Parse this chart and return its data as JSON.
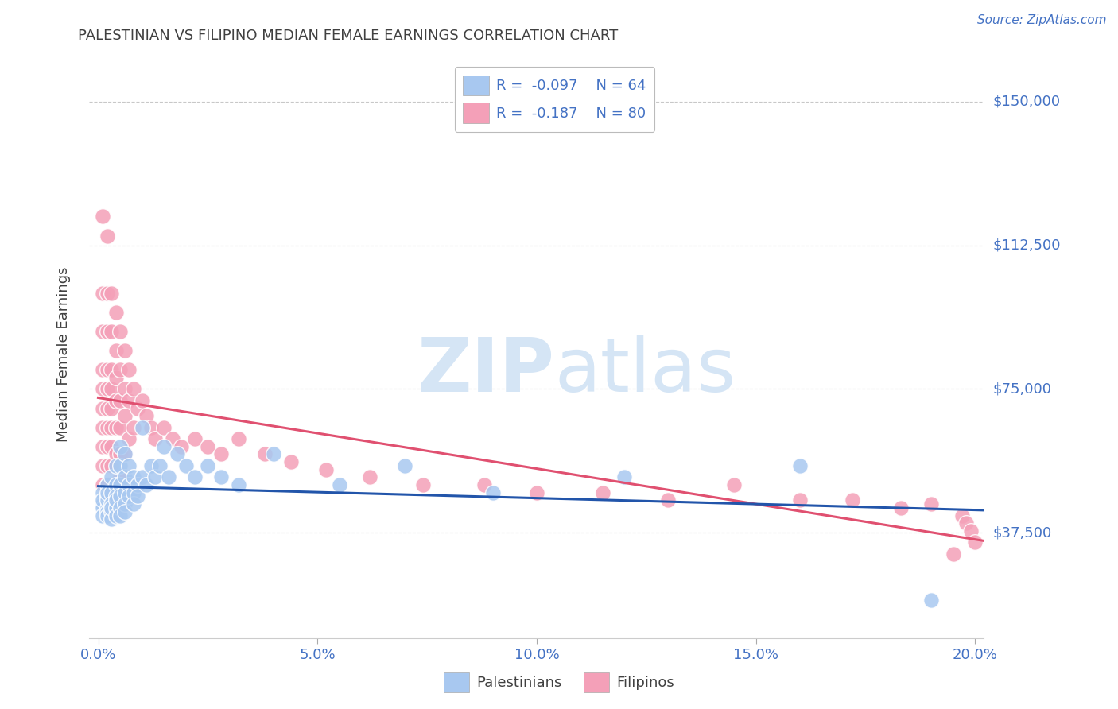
{
  "title": "PALESTINIAN VS FILIPINO MEDIAN FEMALE EARNINGS CORRELATION CHART",
  "source": "Source: ZipAtlas.com",
  "ylabel": "Median Female Earnings",
  "xlabel": "",
  "watermark_zip": "ZIP",
  "watermark_atlas": "atlas",
  "xlim": [
    -0.002,
    0.202
  ],
  "ylim": [
    10000,
    158000
  ],
  "yticks": [
    37500,
    75000,
    112500,
    150000
  ],
  "ytick_labels": [
    "$37,500",
    "$75,000",
    "$112,500",
    "$150,000"
  ],
  "xticks": [
    0.0,
    0.05,
    0.1,
    0.15,
    0.2
  ],
  "xtick_labels": [
    "0.0%",
    "5.0%",
    "10.0%",
    "15.0%",
    "20.0%"
  ],
  "legend_r1": "-0.097",
  "legend_n1": "64",
  "legend_r2": "-0.187",
  "legend_n2": "80",
  "legend_label1": "Palestinians",
  "legend_label2": "Filipinos",
  "color_blue": "#A8C8F0",
  "color_pink": "#F4A0B8",
  "color_line_blue": "#2255AA",
  "color_line_pink": "#E05070",
  "color_title": "#404040",
  "color_axis_label": "#404040",
  "color_tick_blue": "#4472C4",
  "color_grid": "#C8C8C8",
  "color_source": "#4472C4",
  "color_watermark": "#D5E5F5",
  "palestinians_x": [
    0.001,
    0.001,
    0.001,
    0.001,
    0.001,
    0.002,
    0.002,
    0.002,
    0.002,
    0.002,
    0.002,
    0.002,
    0.003,
    0.003,
    0.003,
    0.003,
    0.003,
    0.003,
    0.004,
    0.004,
    0.004,
    0.004,
    0.004,
    0.004,
    0.005,
    0.005,
    0.005,
    0.005,
    0.005,
    0.005,
    0.006,
    0.006,
    0.006,
    0.006,
    0.006,
    0.007,
    0.007,
    0.007,
    0.008,
    0.008,
    0.008,
    0.009,
    0.009,
    0.01,
    0.01,
    0.011,
    0.012,
    0.013,
    0.014,
    0.015,
    0.016,
    0.018,
    0.02,
    0.022,
    0.025,
    0.028,
    0.032,
    0.04,
    0.055,
    0.07,
    0.09,
    0.12,
    0.16,
    0.19
  ],
  "palestinians_y": [
    48000,
    45000,
    44000,
    42000,
    46000,
    50000,
    47000,
    44000,
    43000,
    46000,
    48000,
    42000,
    52000,
    48000,
    45000,
    43000,
    41000,
    44000,
    55000,
    50000,
    47000,
    44000,
    42000,
    46000,
    60000,
    55000,
    50000,
    47000,
    44000,
    42000,
    58000,
    52000,
    48000,
    45000,
    43000,
    55000,
    50000,
    47000,
    52000,
    48000,
    45000,
    50000,
    47000,
    65000,
    52000,
    50000,
    55000,
    52000,
    55000,
    60000,
    52000,
    58000,
    55000,
    52000,
    55000,
    52000,
    50000,
    58000,
    50000,
    55000,
    48000,
    52000,
    55000,
    20000
  ],
  "filipinos_x": [
    0.001,
    0.001,
    0.001,
    0.001,
    0.001,
    0.001,
    0.001,
    0.001,
    0.001,
    0.001,
    0.002,
    0.002,
    0.002,
    0.002,
    0.002,
    0.002,
    0.002,
    0.002,
    0.002,
    0.002,
    0.003,
    0.003,
    0.003,
    0.003,
    0.003,
    0.003,
    0.003,
    0.003,
    0.004,
    0.004,
    0.004,
    0.004,
    0.004,
    0.004,
    0.005,
    0.005,
    0.005,
    0.005,
    0.005,
    0.005,
    0.006,
    0.006,
    0.006,
    0.006,
    0.007,
    0.007,
    0.007,
    0.008,
    0.008,
    0.009,
    0.01,
    0.011,
    0.012,
    0.013,
    0.015,
    0.017,
    0.019,
    0.022,
    0.025,
    0.028,
    0.032,
    0.038,
    0.044,
    0.052,
    0.062,
    0.074,
    0.088,
    0.1,
    0.115,
    0.13,
    0.145,
    0.16,
    0.172,
    0.183,
    0.19,
    0.195,
    0.197,
    0.198,
    0.199,
    0.2
  ],
  "filipinos_y": [
    120000,
    100000,
    90000,
    80000,
    75000,
    70000,
    65000,
    60000,
    55000,
    50000,
    115000,
    100000,
    90000,
    80000,
    75000,
    70000,
    65000,
    60000,
    55000,
    50000,
    100000,
    90000,
    80000,
    75000,
    70000,
    65000,
    60000,
    55000,
    95000,
    85000,
    78000,
    72000,
    65000,
    58000,
    90000,
    80000,
    72000,
    65000,
    58000,
    52000,
    85000,
    75000,
    68000,
    58000,
    80000,
    72000,
    62000,
    75000,
    65000,
    70000,
    72000,
    68000,
    65000,
    62000,
    65000,
    62000,
    60000,
    62000,
    60000,
    58000,
    62000,
    58000,
    56000,
    54000,
    52000,
    50000,
    50000,
    48000,
    48000,
    46000,
    50000,
    46000,
    46000,
    44000,
    45000,
    32000,
    42000,
    40000,
    38000,
    35000
  ]
}
